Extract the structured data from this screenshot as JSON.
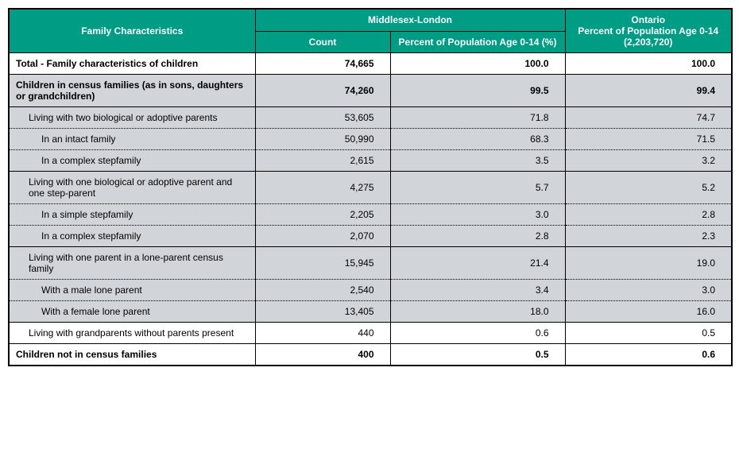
{
  "headers": {
    "family": "Family Characteristics",
    "ml": "Middlesex-London",
    "count": "Count",
    "pct": "Percent of Population Age 0-14 (%)",
    "ontario_line1": "Ontario",
    "ontario_line2": "Percent of Population Age 0-14",
    "ontario_line3": "(2,203,720)"
  },
  "rows": [
    {
      "label": "Total - Family characteristics of children",
      "count": "74,665",
      "pct": "100.0",
      "ontario": "100.0",
      "bold": true,
      "indent": 0,
      "bg": "white",
      "sep": "solid"
    },
    {
      "label": "Children in census families (as in sons, daughters or grandchildren)",
      "count": "74,260",
      "pct": "99.5",
      "ontario": "99.4",
      "bold": true,
      "indent": 0,
      "bg": "grey",
      "sep": "solid"
    },
    {
      "label": "Living with two biological or adoptive parents",
      "count": "53,605",
      "pct": "71.8",
      "ontario": "74.7",
      "bold": false,
      "indent": 1,
      "bg": "grey",
      "sep": "dotted"
    },
    {
      "label": "In an intact family",
      "count": "50,990",
      "pct": "68.3",
      "ontario": "71.5",
      "bold": false,
      "indent": 2,
      "bg": "grey",
      "sep": "dotted"
    },
    {
      "label": "In a complex stepfamily",
      "count": "2,615",
      "pct": "3.5",
      "ontario": "3.2",
      "bold": false,
      "indent": 2,
      "bg": "grey",
      "sep": "solid"
    },
    {
      "label": "Living with one biological or adoptive parent and one step-parent",
      "count": "4,275",
      "pct": "5.7",
      "ontario": "5.2",
      "bold": false,
      "indent": 1,
      "bg": "grey",
      "sep": "dotted"
    },
    {
      "label": "In a simple stepfamily",
      "count": "2,205",
      "pct": "3.0",
      "ontario": "2.8",
      "bold": false,
      "indent": 2,
      "bg": "grey",
      "sep": "dotted"
    },
    {
      "label": "In a complex stepfamily",
      "count": "2,070",
      "pct": "2.8",
      "ontario": "2.3",
      "bold": false,
      "indent": 2,
      "bg": "grey",
      "sep": "solid"
    },
    {
      "label": "Living with one parent in a lone-parent census family",
      "count": "15,945",
      "pct": "21.4",
      "ontario": "19.0",
      "bold": false,
      "indent": 1,
      "bg": "grey",
      "sep": "dotted"
    },
    {
      "label": "With a male lone parent",
      "count": "2,540",
      "pct": "3.4",
      "ontario": "3.0",
      "bold": false,
      "indent": 2,
      "bg": "grey",
      "sep": "dotted"
    },
    {
      "label": "With a female lone parent",
      "count": "13,405",
      "pct": "18.0",
      "ontario": "16.0",
      "bold": false,
      "indent": 2,
      "bg": "grey",
      "sep": "solid"
    },
    {
      "label": "Living with grandparents without parents present",
      "count": "440",
      "pct": "0.6",
      "ontario": "0.5",
      "bold": false,
      "indent": 1,
      "bg": "white",
      "sep": "solid"
    },
    {
      "label": "Children not in census families",
      "count": "400",
      "pct": "0.5",
      "ontario": "0.6",
      "bold": true,
      "indent": 0,
      "bg": "white",
      "sep": "heavy"
    }
  ],
  "col_widths": {
    "label": 310,
    "count": 170,
    "pct": 220,
    "ontario": 210
  }
}
